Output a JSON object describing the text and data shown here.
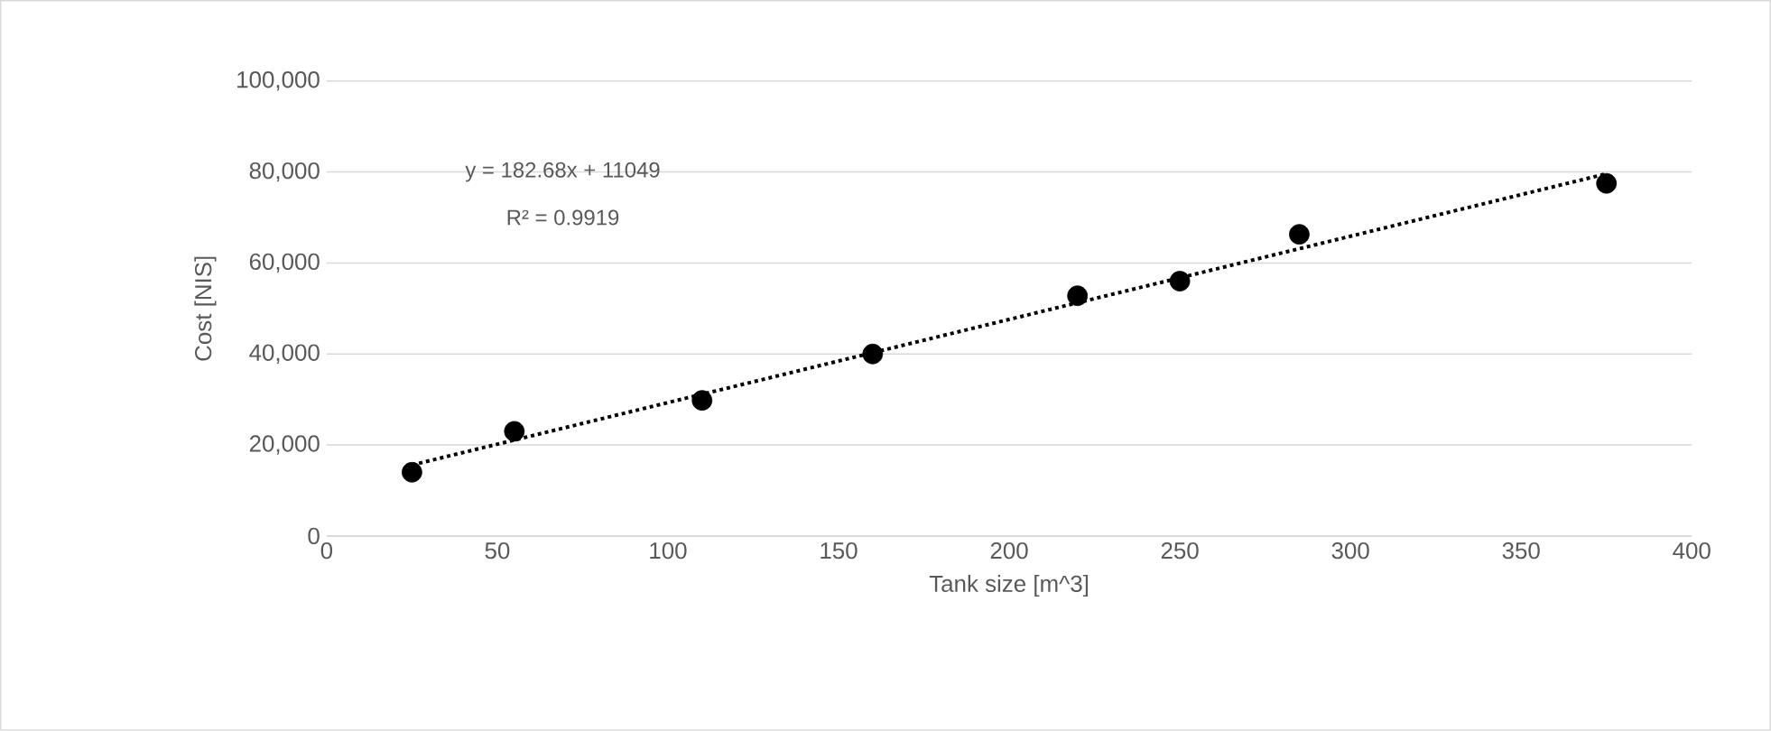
{
  "chart_data": {
    "type": "scatter",
    "xlabel": "Tank size [m^3]",
    "ylabel": "Cost [NIS]",
    "xlim": [
      0,
      400
    ],
    "xticks": [
      0,
      50,
      100,
      150,
      200,
      250,
      300,
      350,
      400
    ],
    "ylim": [
      0,
      100000
    ],
    "yticks": [
      {
        "value": 0,
        "label": "0"
      },
      {
        "value": 20000,
        "label": "20,000"
      },
      {
        "value": 40000,
        "label": "40,000"
      },
      {
        "value": 60000,
        "label": "60,000"
      },
      {
        "value": 80000,
        "label": "80,000"
      },
      {
        "value": 100000,
        "label": "100,000"
      }
    ],
    "grid": "y",
    "series": [
      {
        "color": "#000000",
        "marker": "circle",
        "x": [
          25,
          55,
          110,
          160,
          220,
          250,
          285,
          375
        ],
        "values": [
          14000,
          23000,
          29800,
          40000,
          52800,
          56000,
          66300,
          77500
        ]
      },
      {
        "type": "line",
        "color": "#000000",
        "line_style": "dotted",
        "x": [
          25,
          375
        ],
        "values": [
          15600,
          79600
        ]
      }
    ],
    "annotations": [
      "y = 182.68x + 11049",
      "R² = 0.9919"
    ]
  }
}
